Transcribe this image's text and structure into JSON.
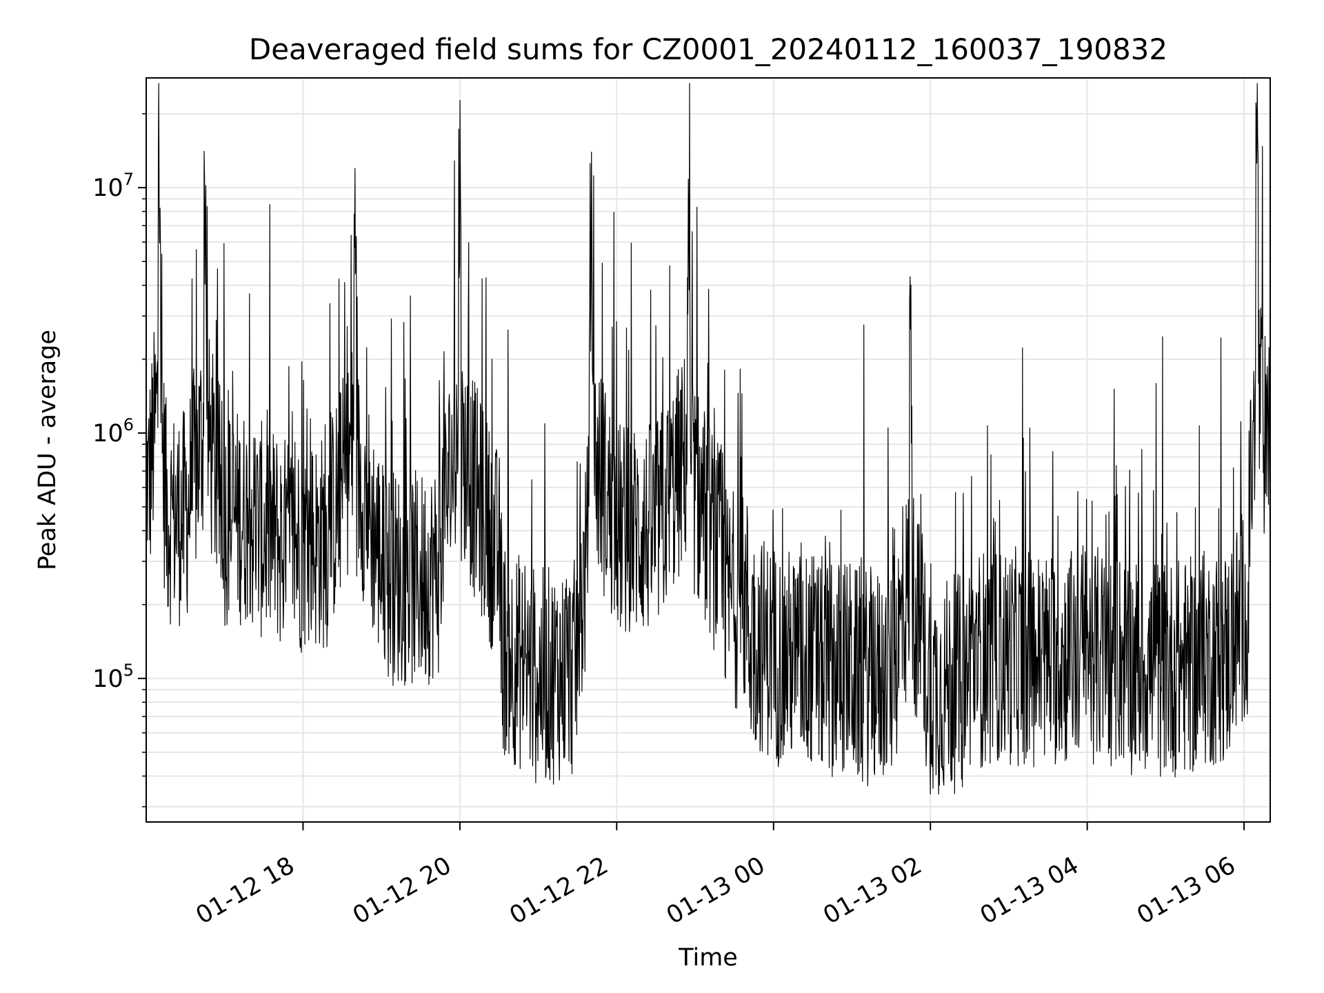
{
  "chart_data": {
    "type": "line",
    "title": "Deaveraged field sums for CZ0001_20240112_160037_190832",
    "xlabel": "Time",
    "ylabel": "Peak ADU - average",
    "x_scale": "time",
    "y_scale": "log",
    "xlim": [
      "2024-01-12 16:00",
      "2024-01-13 06:20"
    ],
    "ylim": [
      26000,
      28000000
    ],
    "x_ticks": [
      {
        "value": "2024-01-12 18:00",
        "label": "01-12 18"
      },
      {
        "value": "2024-01-12 20:00",
        "label": "01-12 20"
      },
      {
        "value": "2024-01-12 22:00",
        "label": "01-12 22"
      },
      {
        "value": "2024-01-13 00:00",
        "label": "01-13 00"
      },
      {
        "value": "2024-01-13 02:00",
        "label": "01-13 02"
      },
      {
        "value": "2024-01-13 04:00",
        "label": "01-13 04"
      },
      {
        "value": "2024-01-13 06:00",
        "label": "01-13 06"
      }
    ],
    "y_ticks": [
      {
        "value": 100000,
        "base": "10",
        "exp": "5"
      },
      {
        "value": 1000000,
        "base": "10",
        "exp": "6"
      },
      {
        "value": 10000000,
        "base": "10",
        "exp": "7"
      }
    ],
    "grid": true,
    "line_color": "#000000",
    "series": [
      {
        "x": [
          "2024-01-12 16:00",
          "2024-01-12 16:10",
          "2024-01-12 16:15",
          "2024-01-12 16:30",
          "2024-01-12 16:45",
          "2024-01-12 17:00",
          "2024-01-12 17:20",
          "2024-01-12 17:40",
          "2024-01-12 18:00",
          "2024-01-12 18:20",
          "2024-01-12 18:40",
          "2024-01-12 19:00",
          "2024-01-12 19:30",
          "2024-01-12 19:45",
          "2024-01-12 20:00",
          "2024-01-12 20:30",
          "2024-01-12 21:00",
          "2024-01-12 21:30",
          "2024-01-12 21:40",
          "2024-01-12 22:00",
          "2024-01-12 22:30",
          "2024-01-12 22:55",
          "2024-01-12 23:20",
          "2024-01-12 23:40",
          "2024-01-13 00:00",
          "2024-01-13 00:30",
          "2024-01-13 01:00",
          "2024-01-13 01:30",
          "2024-01-13 01:45",
          "2024-01-13 02:00",
          "2024-01-13 02:30",
          "2024-01-13 03:00",
          "2024-01-13 03:30",
          "2024-01-13 04:00",
          "2024-01-13 04:30",
          "2024-01-13 05:00",
          "2024-01-13 05:30",
          "2024-01-13 05:50",
          "2024-01-13 06:05",
          "2024-01-13 06:10",
          "2024-01-13 06:20"
        ],
        "y": [
          500000,
          20000000,
          500000,
          450000,
          9000000,
          450000,
          500000,
          380000,
          350000,
          400000,
          7000000,
          300000,
          250000,
          400000,
          10800000,
          300000,
          100000,
          140000,
          6000000,
          400000,
          400000,
          5000000,
          300000,
          200000,
          130000,
          120000,
          110000,
          100000,
          2500000,
          90000,
          120000,
          130000,
          120000,
          140000,
          120000,
          110000,
          120000,
          140000,
          500000,
          21000000,
          600000
        ]
      }
    ]
  }
}
